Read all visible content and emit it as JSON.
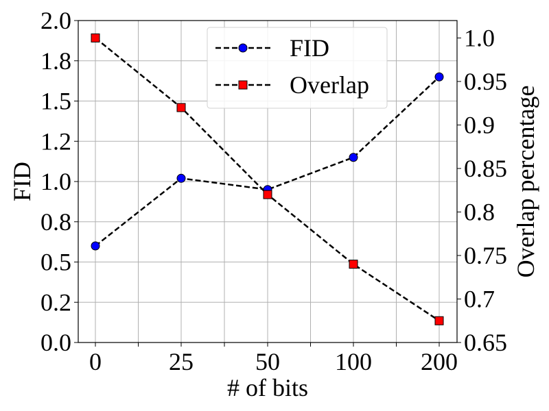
{
  "chart_data": {
    "type": "line",
    "categories": [
      "0",
      "25",
      "50",
      "100",
      "200"
    ],
    "xlabel": "# of bits",
    "ylabel": "FID",
    "y2label": "Overlap percentage",
    "ylim": [
      0.0,
      2.0
    ],
    "y2lim": [
      0.65,
      1.02
    ],
    "yticks": [
      "0.0",
      "0.2",
      "0.5",
      "0.8",
      "1.0",
      "1.2",
      "1.5",
      "1.8",
      "2.0"
    ],
    "y2ticks": [
      "0.65",
      "0.7",
      "0.75",
      "0.8",
      "0.85",
      "0.9",
      "0.95",
      "1.0"
    ],
    "grid": true,
    "legend_position": "top-center",
    "series": [
      {
        "name": "FID",
        "axis": "left",
        "values": [
          0.6,
          1.02,
          0.95,
          1.15,
          1.65
        ],
        "color": "#0000ff",
        "marker": "circle",
        "line_style": "dashed"
      },
      {
        "name": "Overlap",
        "axis": "right",
        "values": [
          1.0,
          0.92,
          0.82,
          0.74,
          0.675
        ],
        "color": "#ff0000",
        "marker": "square",
        "line_style": "dashed"
      }
    ]
  }
}
